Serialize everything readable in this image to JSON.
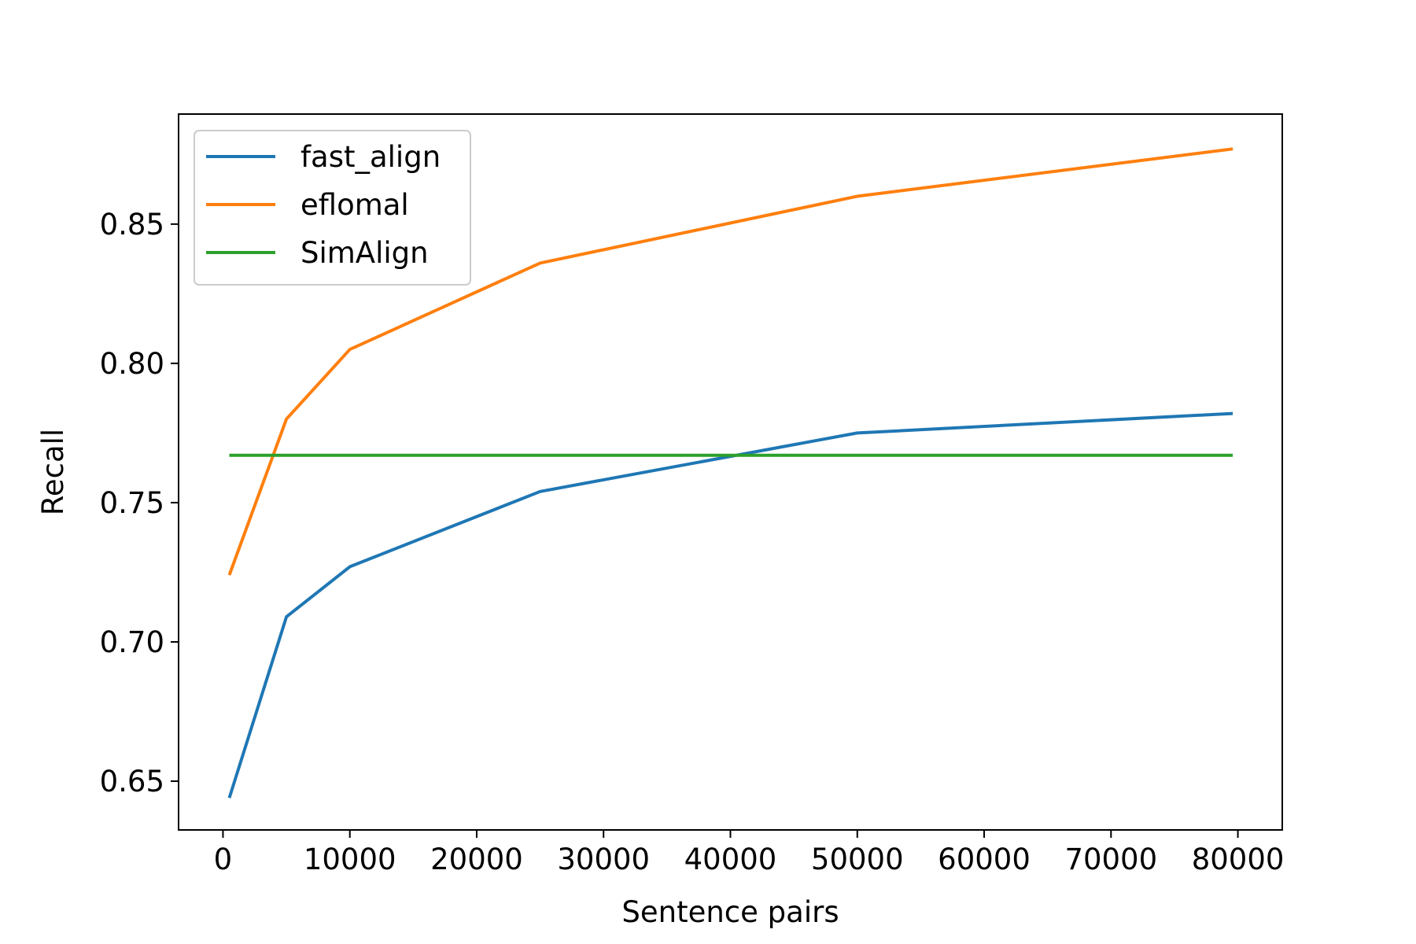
{
  "chart_data": {
    "type": "line",
    "title": "",
    "xlabel": "Sentence pairs",
    "ylabel": "Recall",
    "xlim": [
      -3500,
      83500
    ],
    "ylim": [
      0.6325,
      0.8895
    ],
    "xticks": [
      0,
      10000,
      20000,
      30000,
      40000,
      50000,
      60000,
      70000,
      80000
    ],
    "xtick_labels": [
      "0",
      "10000",
      "20000",
      "30000",
      "40000",
      "50000",
      "60000",
      "70000",
      "80000"
    ],
    "yticks": [
      0.65,
      0.7,
      0.75,
      0.8,
      0.85
    ],
    "ytick_labels": [
      "0.65",
      "0.70",
      "0.75",
      "0.80",
      "0.85"
    ],
    "grid": false,
    "legend_position": "top-left",
    "series": [
      {
        "name": "fast_align",
        "color": "#1f77b4",
        "x": [
          500,
          5000,
          10000,
          25000,
          50000,
          79600
        ],
        "y": [
          0.644,
          0.709,
          0.727,
          0.754,
          0.775,
          0.782
        ]
      },
      {
        "name": "eflomal",
        "color": "#ff7f0e",
        "x": [
          500,
          5000,
          10000,
          25000,
          50000,
          79600
        ],
        "y": [
          0.724,
          0.78,
          0.805,
          0.836,
          0.86,
          0.877
        ]
      },
      {
        "name": "SimAlign",
        "color": "#2ca02c",
        "x": [
          500,
          79600
        ],
        "y": [
          0.767,
          0.767
        ]
      }
    ]
  }
}
